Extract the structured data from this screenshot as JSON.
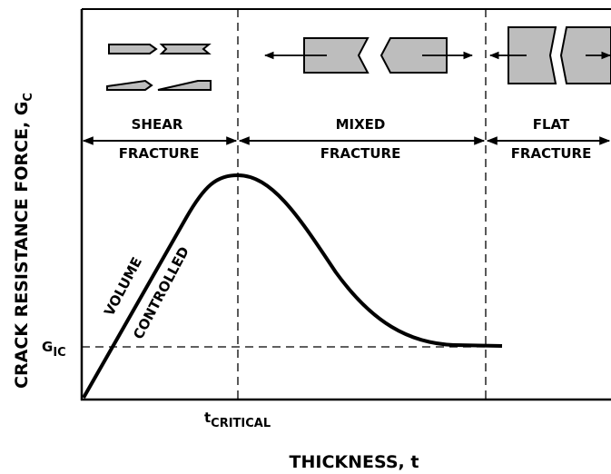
{
  "axes": {
    "y_label": {
      "text": "CRACK RESISTANCE FORCE, G",
      "sub": "C"
    },
    "x_label": "THICKNESS, t",
    "y_marker": {
      "text": "G",
      "sub": "IC"
    },
    "x_marker": {
      "text": "t",
      "sub": "CRITICAL"
    }
  },
  "regions": [
    {
      "top": "SHEAR",
      "bottom": "FRACTURE"
    },
    {
      "top": "MIXED",
      "bottom": "FRACTURE"
    },
    {
      "top": "FLAT",
      "bottom": "FRACTURE"
    }
  ],
  "annotations": [
    "VOLUME",
    "CONTROLLED"
  ]
}
